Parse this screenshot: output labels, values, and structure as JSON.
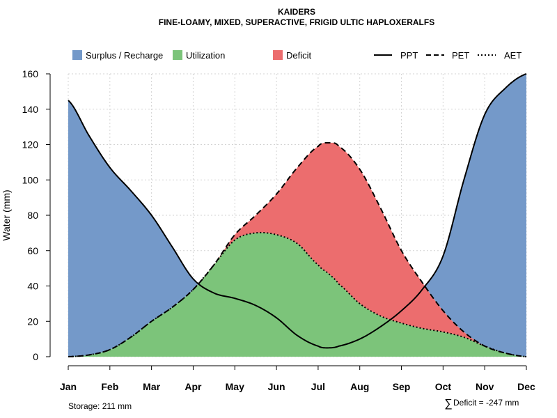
{
  "chart_data": {
    "type": "area",
    "title": "KAIDERS",
    "subtitle": "FINE-LOAMY, MIXED, SUPERACTIVE, FRIGID ULTIC HAPLOXERALFS",
    "ylabel": "Water (mm)",
    "xlabel": "",
    "ylim": [
      0,
      160
    ],
    "yticks": [
      "0",
      "20",
      "40",
      "60",
      "80",
      "100",
      "120",
      "140",
      "160"
    ],
    "categories": [
      "Jan",
      "Feb",
      "Mar",
      "Apr",
      "May",
      "Jun",
      "Jul",
      "Aug",
      "Sep",
      "Oct",
      "Nov",
      "Dec"
    ],
    "x": [
      1,
      1.5,
      2,
      2.5,
      3,
      3.5,
      4,
      4.5,
      5,
      5.5,
      6,
      6.5,
      7,
      7.25,
      7.5,
      8,
      8.5,
      9,
      9.5,
      10,
      10.5,
      11,
      11.5,
      12
    ],
    "series": [
      {
        "name": "PPT",
        "line": "solid",
        "values": [
          145,
          125,
          107,
          94,
          80,
          62,
          44,
          36,
          33,
          29,
          22,
          12,
          6,
          5,
          6,
          10,
          17,
          26,
          38,
          57,
          100,
          137,
          152,
          160
        ]
      },
      {
        "name": "PET",
        "line": "dashed",
        "values": [
          0,
          1,
          4,
          11,
          20,
          28,
          38,
          52,
          69,
          80,
          92,
          107,
          119,
          121,
          119,
          106,
          84,
          60,
          42,
          26,
          14,
          6,
          2,
          0
        ]
      },
      {
        "name": "AET",
        "line": "dotted",
        "values": [
          0,
          1,
          4,
          11,
          20,
          28,
          38,
          52,
          66,
          70,
          69,
          64,
          52,
          47,
          41,
          30,
          23,
          19,
          16,
          14,
          11,
          6,
          2,
          0
        ]
      }
    ],
    "legend": {
      "position": "top",
      "areas": [
        {
          "label": "Surplus / Recharge",
          "color": "#7499c9"
        },
        {
          "label": "Utilization",
          "color": "#7cc47a"
        },
        {
          "label": "Deficit",
          "color": "#ec6d6e"
        }
      ],
      "lines": [
        {
          "label": "PPT",
          "style": "solid"
        },
        {
          "label": "PET",
          "style": "dashed"
        },
        {
          "label": "AET",
          "style": "dotted"
        }
      ]
    },
    "grid": true,
    "annotations": {
      "storage": "Storage: 211 mm",
      "deficit_symbol": "∑",
      "deficit": "Deficit = -247 mm"
    }
  }
}
